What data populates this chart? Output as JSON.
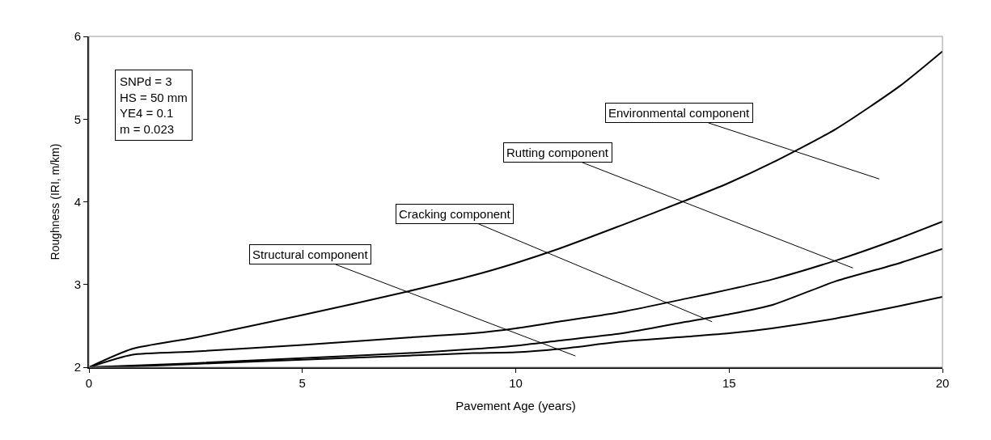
{
  "chart_data": {
    "type": "line",
    "xlabel": "Pavement Age (years)",
    "ylabel": "Roughness (IRI, m/km)",
    "x": [
      0,
      1,
      2.5,
      5,
      7.5,
      9,
      10,
      11,
      12.5,
      14,
      15,
      16,
      17.5,
      19,
      20
    ],
    "series": [
      {
        "color": "#000000",
        "values": [
          2,
          2.22,
          2.36,
          2.63,
          2.92,
          3.11,
          3.26,
          3.43,
          3.72,
          4.02,
          4.23,
          4.47,
          4.88,
          5.4,
          5.82
        ]
      },
      {
        "color": "#000000",
        "values": [
          2,
          2.15,
          2.19,
          2.27,
          2.36,
          2.41,
          2.47,
          2.55,
          2.67,
          2.83,
          2.94,
          3.06,
          3.29,
          3.56,
          3.76
        ]
      },
      {
        "color": "#000000",
        "values": [
          2,
          2.02,
          2.05,
          2.11,
          2.17,
          2.22,
          2.26,
          2.32,
          2.41,
          2.55,
          2.64,
          2.75,
          3.04,
          3.26,
          3.43
        ]
      },
      {
        "color": "#000000",
        "values": [
          2,
          2.01,
          2.04,
          2.09,
          2.14,
          2.17,
          2.18,
          2.22,
          2.31,
          2.37,
          2.41,
          2.47,
          2.59,
          2.74,
          2.85
        ]
      }
    ],
    "xlim": [
      0,
      20
    ],
    "xticks": [
      0,
      5,
      10,
      15,
      20
    ],
    "ylim": [
      2,
      6
    ],
    "yticks": [
      2,
      3,
      4,
      5,
      6
    ],
    "marker": "none",
    "line_style": "solid",
    "annotations": [
      "SNPd = 3\nHS = 50 mm\nYE4 = 0.1\nm = 0.023",
      "Environmental component",
      "Rutting component",
      {
        "text": "Cracking component",
        "x": 14.6,
        "y": 2.55
      },
      "Structural component"
    ]
  }
}
